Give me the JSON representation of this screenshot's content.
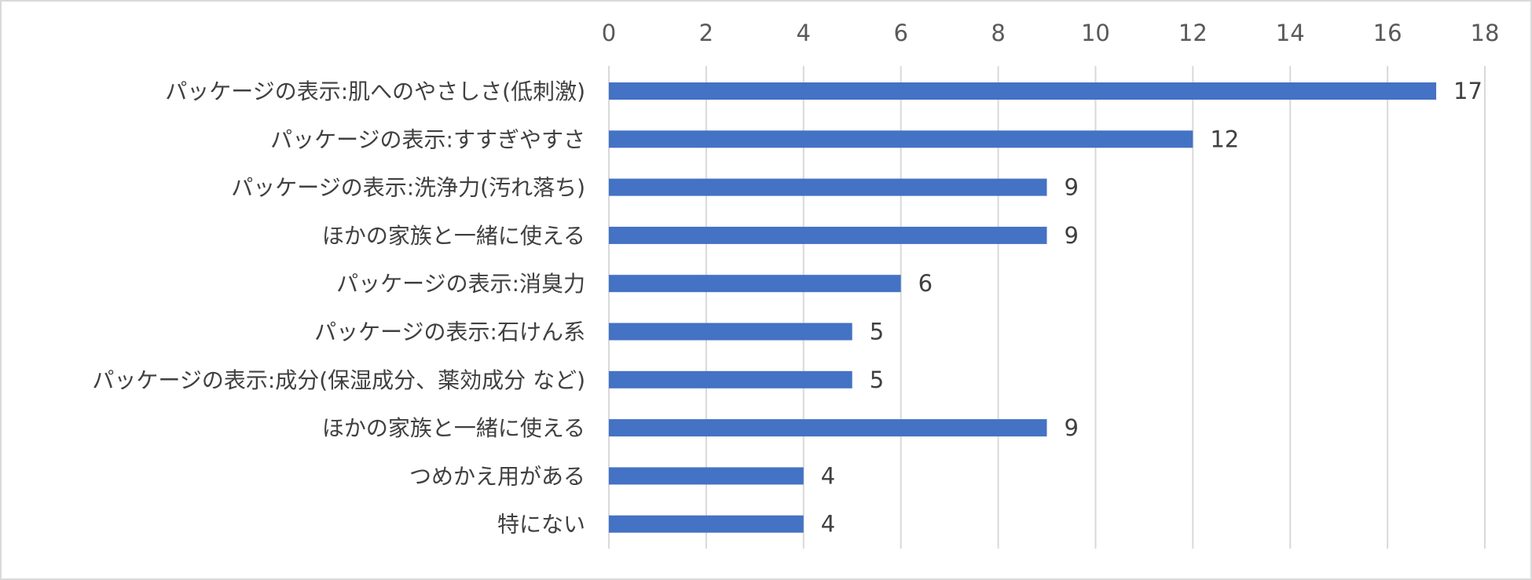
{
  "chart_data": {
    "type": "bar",
    "orientation": "horizontal",
    "categories": [
      "パッケージの表示:肌へのやさしさ(低刺激)",
      "パッケージの表示:すすぎやすさ",
      "パッケージの表示:洗浄力(汚れ落ち)",
      "ほかの家族と一緒に使える",
      "パッケージの表示:消臭力",
      "パッケージの表示:石けん系",
      "パッケージの表示:成分(保湿成分、薬効成分 など)",
      "ほかの家族と一緒に使える",
      "つめかえ用がある",
      "特にない"
    ],
    "values": [
      17,
      12,
      9,
      9,
      6,
      5,
      5,
      9,
      4,
      4
    ],
    "data_labels": [
      "17",
      "12",
      "9",
      "9",
      "6",
      "5",
      "5",
      "9",
      "4",
      "4"
    ],
    "xlim": [
      0,
      18
    ],
    "x_ticks": [
      0,
      2,
      4,
      6,
      8,
      10,
      12,
      14,
      16,
      18
    ],
    "x_tick_labels": [
      "0",
      "2",
      "4",
      "6",
      "8",
      "10",
      "12",
      "14",
      "16",
      "18"
    ],
    "x_axis_position": "top",
    "grid": true,
    "title": "",
    "xlabel": "",
    "ylabel": "",
    "colors": {
      "bar": "#4472c4",
      "grid": "#d9d9d9",
      "border": "#d9d9d9",
      "text": "#404040"
    }
  }
}
